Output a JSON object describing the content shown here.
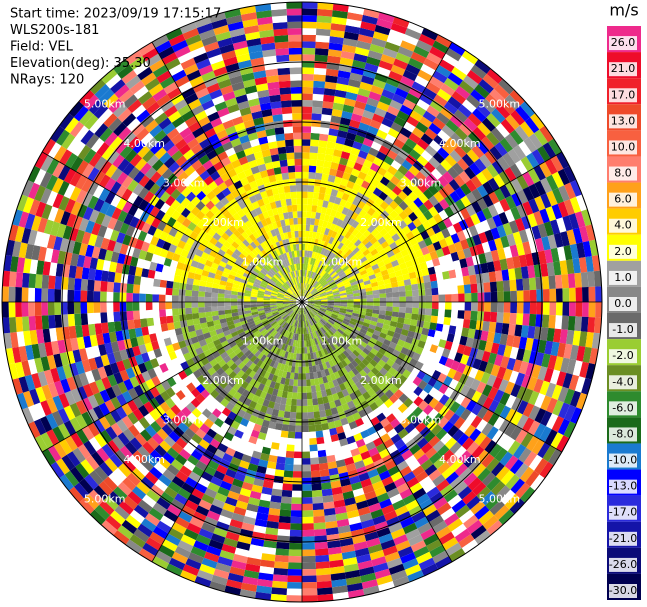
{
  "chart_data": {
    "type": "ppi",
    "info": [
      "Start time: 2023/09/19 17:15:17",
      "WLS200s-181",
      "Field: VEL",
      "Elevation(deg): 35.30",
      "NRays: 120"
    ],
    "range_labels": [
      "1.00km",
      "2.00km",
      "3.00km",
      "4.00km",
      "5.00km"
    ],
    "colorbar": {
      "unit": "m/s",
      "ticks": [
        {
          "value": 26,
          "label": "26.0"
        },
        {
          "value": 21,
          "label": "21.0"
        },
        {
          "value": 17,
          "label": "17.0"
        },
        {
          "value": 13,
          "label": "13.0"
        },
        {
          "value": 10,
          "label": "10.0"
        },
        {
          "value": 8,
          "label": "8.0"
        },
        {
          "value": 6,
          "label": "6.0"
        },
        {
          "value": 4,
          "label": "4.0"
        },
        {
          "value": 2,
          "label": "2.0"
        },
        {
          "value": 1,
          "label": "1.0"
        },
        {
          "value": 0,
          "label": "0.0"
        },
        {
          "value": -1,
          "label": "-1.0"
        },
        {
          "value": -2,
          "label": "-2.0"
        },
        {
          "value": -4,
          "label": "-4.0"
        },
        {
          "value": -6,
          "label": "-6.0"
        },
        {
          "value": -8,
          "label": "-8.0"
        },
        {
          "value": -10,
          "label": "-10.0"
        },
        {
          "value": -13,
          "label": "-13.0"
        },
        {
          "value": -17,
          "label": "-17.0"
        },
        {
          "value": -21,
          "label": "-21.0"
        },
        {
          "value": -26,
          "label": "-26.0"
        },
        {
          "value": -30,
          "label": "-30.0"
        }
      ],
      "colors": [
        "#ee2a8c",
        "#ee0c2a",
        "#f0202a",
        "#ee4a2a",
        "#f86040",
        "#ff7e6e",
        "#ffa11a",
        "#ffcc00",
        "#ffff00",
        "#a0a0a0",
        "#888888",
        "#6a6a6a",
        "#9acd32",
        "#6b8e23",
        "#2e8b2e",
        "#1a6a1a",
        "#1a7ad0",
        "#0000ff",
        "#2a2adc",
        "#1414a8",
        "#0a0a78",
        "#000050"
      ]
    }
  }
}
